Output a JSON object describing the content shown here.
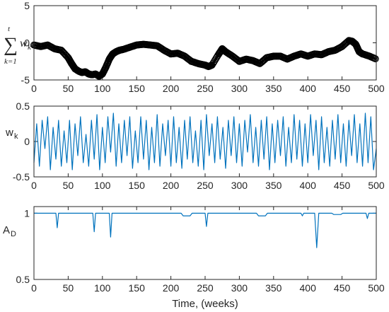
{
  "chart_data": [
    {
      "type": "line",
      "ylabel_tex": {
        "sum": "∑",
        "upper": "t",
        "lower": "k=1",
        "term": "w",
        "sub": "k"
      },
      "xlim": [
        0,
        500
      ],
      "ylim": [
        -5,
        5
      ],
      "xticks": [
        "0",
        "50",
        "100",
        "150",
        "200",
        "250",
        "300",
        "350",
        "400",
        "450",
        "500"
      ],
      "yticks": [
        "-5",
        "0",
        "5"
      ],
      "marker": "circle",
      "color": "#000000",
      "series": [
        {
          "x": [
            0,
            10,
            20,
            30,
            40,
            50,
            55,
            60,
            65,
            70,
            75,
            80,
            85,
            90,
            95,
            100,
            105,
            110,
            115,
            120,
            125,
            130,
            140,
            150,
            160,
            170,
            180,
            190,
            200,
            210,
            220,
            230,
            240,
            250,
            255,
            260,
            270,
            275,
            280,
            290,
            300,
            310,
            320,
            330,
            340,
            350,
            360,
            370,
            380,
            390,
            400,
            410,
            420,
            430,
            440,
            450,
            460,
            465,
            470,
            475,
            480,
            490,
            500
          ],
          "y": [
            -0.3,
            -0.5,
            -0.3,
            -0.8,
            -1.0,
            -2.0,
            -2.8,
            -3.5,
            -3.8,
            -4.0,
            -3.9,
            -4.2,
            -4.3,
            -4.2,
            -4.5,
            -4.2,
            -3.3,
            -2.2,
            -1.5,
            -1.2,
            -1.0,
            -0.9,
            -0.6,
            -0.3,
            -0.2,
            -0.3,
            -0.4,
            -1.0,
            -1.5,
            -1.4,
            -1.8,
            -2.5,
            -2.8,
            -3.0,
            -3.2,
            -3.0,
            -1.5,
            -0.8,
            -1.2,
            -1.8,
            -2.5,
            -2.2,
            -2.4,
            -2.8,
            -2.0,
            -1.8,
            -1.8,
            -2.2,
            -1.8,
            -1.5,
            -1.8,
            -1.5,
            -1.6,
            -1.2,
            -1.0,
            -0.5,
            0.3,
            0.2,
            -0.2,
            -1.2,
            -1.5,
            -1.8,
            -2.2
          ]
        }
      ]
    },
    {
      "type": "line",
      "ylabel": "w",
      "ylabel_sub": "k",
      "xlim": [
        0,
        500
      ],
      "ylim": [
        -0.5,
        0.5
      ],
      "xticks": [
        "0",
        "50",
        "100",
        "150",
        "200",
        "250",
        "300",
        "350",
        "400",
        "450",
        "500"
      ],
      "yticks": [
        "-0.5",
        "0",
        "0.5"
      ],
      "color": "#0072BD",
      "series": [
        {
          "x": [
            0,
            4,
            8,
            12,
            16,
            20,
            24,
            28,
            32,
            36,
            40,
            44,
            48,
            52,
            56,
            60,
            64,
            68,
            72,
            76,
            80,
            84,
            88,
            92,
            96,
            100,
            104,
            108,
            112,
            116,
            120,
            124,
            128,
            132,
            136,
            140,
            144,
            148,
            152,
            156,
            160,
            164,
            168,
            172,
            176,
            180,
            184,
            188,
            192,
            196,
            200,
            204,
            208,
            212,
            216,
            220,
            224,
            228,
            232,
            236,
            240,
            244,
            248,
            252,
            256,
            260,
            264,
            268,
            272,
            276,
            280,
            284,
            288,
            292,
            296,
            300,
            304,
            308,
            312,
            316,
            320,
            324,
            328,
            332,
            336,
            340,
            344,
            348,
            352,
            356,
            360,
            364,
            368,
            372,
            376,
            380,
            384,
            388,
            392,
            396,
            400,
            404,
            408,
            412,
            416,
            420,
            424,
            428,
            432,
            436,
            440,
            444,
            448,
            452,
            456,
            460,
            464,
            468,
            472,
            476,
            480,
            484,
            488,
            492,
            496,
            500
          ],
          "y": [
            -0.3,
            0.25,
            -0.35,
            0.3,
            -0.1,
            0.35,
            -0.4,
            0.2,
            -0.25,
            0.3,
            -0.35,
            0.15,
            -0.3,
            0.3,
            -0.4,
            0.25,
            -0.2,
            0.35,
            -0.3,
            0.1,
            -0.35,
            0.3,
            -0.25,
            0.38,
            -0.4,
            0.2,
            -0.3,
            0.35,
            -0.15,
            0.4,
            -0.35,
            0.25,
            -0.3,
            0.3,
            -0.2,
            0.35,
            -0.38,
            0.15,
            -0.3,
            0.35,
            -0.25,
            0.3,
            -0.4,
            0.2,
            -0.3,
            0.38,
            -0.35,
            0.25,
            -0.2,
            0.3,
            -0.35,
            0.35,
            -0.3,
            0.2,
            -0.38,
            0.3,
            -0.25,
            0.35,
            -0.3,
            0.15,
            -0.35,
            0.3,
            -0.4,
            0.38,
            -0.2,
            0.25,
            -0.3,
            0.35,
            -0.25,
            0.2,
            -0.38,
            0.3,
            -0.2,
            0.35,
            -0.3,
            0.25,
            -0.35,
            0.3,
            -0.15,
            0.38,
            -0.3,
            0.2,
            -0.35,
            0.3,
            -0.25,
            0.35,
            -0.4,
            0.25,
            -0.3,
            0.3,
            -0.2,
            0.35,
            -0.35,
            0.2,
            -0.3,
            0.38,
            -0.25,
            0.3,
            -0.35,
            0.25,
            -0.3,
            0.38,
            -0.2,
            0.3,
            -0.4,
            0.35,
            -0.3,
            0.2,
            -0.35,
            0.3,
            -0.25,
            0.38,
            -0.3,
            0.25,
            -0.35,
            0.3,
            -0.2,
            0.38,
            -0.3,
            0.25,
            -0.35,
            0.4,
            -0.3,
            0.35,
            -0.4,
            -0.1
          ]
        }
      ]
    },
    {
      "type": "line",
      "ylabel": "A",
      "ylabel_sub": "D",
      "xlim": [
        0,
        500
      ],
      "ylim": [
        0.5,
        1.05
      ],
      "xticks": [
        "0",
        "50",
        "100",
        "150",
        "200",
        "250",
        "300",
        "350",
        "400",
        "450",
        "500"
      ],
      "yticks": [
        "0.5",
        "1"
      ],
      "color": "#0072BD",
      "series": [
        {
          "x": [
            0,
            32,
            34,
            36,
            86,
            88,
            90,
            110,
            112,
            114,
            215,
            218,
            228,
            231,
            250,
            252,
            254,
            325,
            328,
            338,
            341,
            390,
            392,
            394,
            410,
            413,
            416,
            435,
            438,
            448,
            451,
            485,
            487,
            489,
            500
          ],
          "y": [
            1,
            1,
            0.89,
            1,
            1,
            0.86,
            1,
            1,
            0.82,
            1,
            1,
            0.98,
            0.98,
            1,
            1,
            0.9,
            1,
            1,
            0.98,
            0.98,
            1,
            1,
            0.98,
            1,
            1,
            0.74,
            1,
            1,
            0.99,
            0.99,
            1,
            1,
            0.96,
            1,
            1
          ]
        }
      ]
    }
  ],
  "xlabel": "Time, (weeks)"
}
